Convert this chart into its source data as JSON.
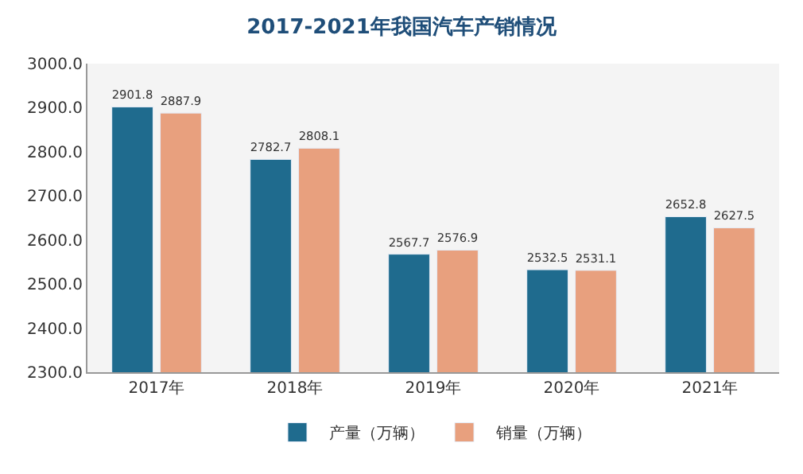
{
  "chart_data": {
    "type": "bar",
    "title": "2017-2021年我国汽车产销情况",
    "categories": [
      "2017年",
      "2018年",
      "2019年",
      "2020年",
      "2021年"
    ],
    "series": [
      {
        "name": "产量（万辆）",
        "color": "#1f6b8e",
        "values": [
          2901.8,
          2782.7,
          2567.7,
          2532.5,
          2652.8
        ]
      },
      {
        "name": "销量（万辆）",
        "color": "#e8a07e",
        "values": [
          2887.9,
          2808.1,
          2576.9,
          2531.1,
          2627.5
        ]
      }
    ],
    "ylim": [
      2300,
      3000
    ],
    "yticks": [
      {
        "value": 2300,
        "label": "2300.0"
      },
      {
        "value": 2400,
        "label": "2400.0"
      },
      {
        "value": 2500,
        "label": "2500.0"
      },
      {
        "value": 2600,
        "label": "2600.0"
      },
      {
        "value": 2700,
        "label": "2700.0"
      },
      {
        "value": 2800,
        "label": "2800.0"
      },
      {
        "value": 2900,
        "label": "2900.0"
      },
      {
        "value": 3000,
        "label": "3000.0"
      }
    ],
    "data_labels": true,
    "legend": "bottom",
    "grid": false
  }
}
